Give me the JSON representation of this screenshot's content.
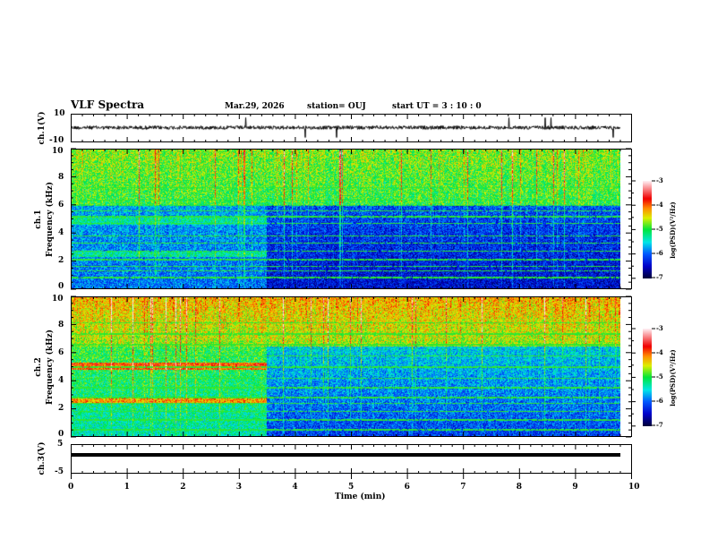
{
  "header": {
    "title": "VLF Spectra",
    "date": "Mar.29, 2026",
    "station": "station= OUJ",
    "start": "start  UT =   3  : 10 : 0"
  },
  "chart_data": [
    {
      "type": "line",
      "name": "ch1 waveform",
      "ylabel": "ch.1(V)",
      "ylim": [
        -10,
        10
      ],
      "ytick_labels": [
        "10",
        "-10"
      ],
      "xlim": [
        0,
        10
      ],
      "description_level": 0,
      "noise_amplitude": 1.5
    },
    {
      "type": "heatmap",
      "name": "ch1 spectrogram",
      "ylabel_top": "ch.1",
      "ylabel": "Frequency  (kHz)",
      "ylim": [
        0,
        10
      ],
      "ytick_labels": [
        "0",
        "2",
        "4",
        "6",
        "8",
        "10"
      ],
      "xlim": [
        0,
        10
      ],
      "data_end_min": 9.85,
      "colorbar": {
        "label": "log(PSD)(V²/Hz)",
        "range": [
          -7,
          -3
        ],
        "tick_labels": [
          "-3",
          "-4",
          "-5",
          "-6",
          "-7"
        ]
      },
      "regime_change_min": 3.5
    },
    {
      "type": "heatmap",
      "name": "ch2 spectrogram",
      "ylabel_top": "ch.2",
      "ylabel": "Frequency  (kHz)",
      "ylim": [
        0,
        10
      ],
      "ytick_labels": [
        "0",
        "2",
        "4",
        "6",
        "8",
        "10"
      ],
      "xlim": [
        0,
        10
      ],
      "data_end_min": 9.85,
      "colorbar": {
        "label": "log(PSD)(V²/Hz)",
        "range": [
          -7,
          -3
        ],
        "tick_labels": [
          "-3",
          "-4",
          "-5",
          "-6",
          "-7"
        ]
      },
      "regime_change_min": 3.5
    },
    {
      "type": "line",
      "name": "ch3 waveform",
      "ylabel": "ch.3(V)",
      "ylim": [
        -5,
        5
      ],
      "ytick_labels": [
        "5",
        "-5"
      ],
      "xlim": [
        0,
        10
      ],
      "level": 1.5
    }
  ],
  "xaxis": {
    "label": "Time  (min)",
    "tick_labels": [
      "0",
      "1",
      "2",
      "3",
      "4",
      "5",
      "6",
      "7",
      "8",
      "9",
      "10"
    ]
  }
}
